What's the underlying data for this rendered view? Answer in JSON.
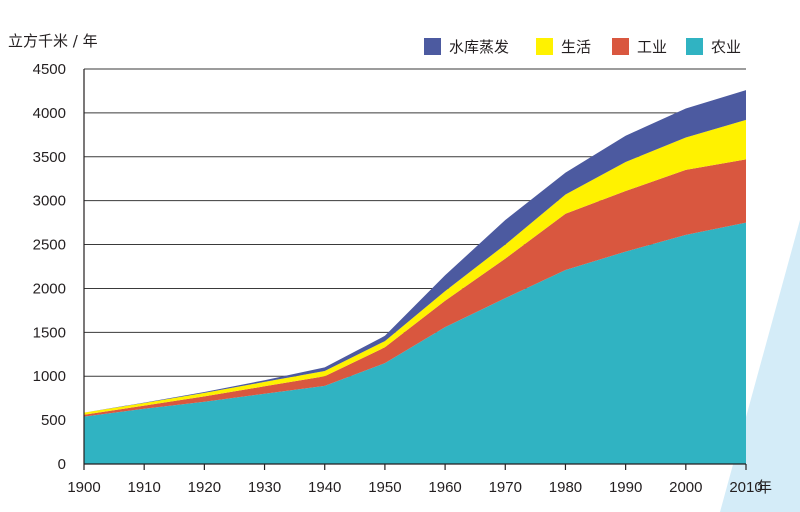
{
  "chart_data": {
    "type": "area",
    "stacked": true,
    "title": "",
    "ylabel": "立方千米 / 年",
    "xlabel": "",
    "x_unit": "年",
    "x": [
      1900,
      1910,
      1920,
      1930,
      1940,
      1950,
      1960,
      1970,
      1980,
      1990,
      2000,
      2010
    ],
    "x_tick_labels": [
      "1900",
      "1910",
      "1920",
      "1930",
      "1940",
      "1950",
      "1960",
      "1970",
      "1980",
      "1990",
      "2000",
      "2010"
    ],
    "ylim": [
      0,
      4500
    ],
    "y_ticks": [
      0,
      500,
      1000,
      1500,
      2000,
      2500,
      3000,
      3500,
      4000,
      4500
    ],
    "y_tick_labels": [
      "0",
      "500",
      "1000",
      "1500",
      "2000",
      "2500",
      "3000",
      "3500",
      "4000",
      "4500"
    ],
    "grid": "horizontal",
    "legend_position": "top-right",
    "series": [
      {
        "name": "农业",
        "color": "#30b3c2",
        "values": [
          540,
          630,
          710,
          800,
          890,
          1150,
          1560,
          1890,
          2210,
          2420,
          2610,
          2750
        ]
      },
      {
        "name": "工业",
        "color": "#d9573f",
        "values": [
          20,
          35,
          60,
          85,
          110,
          180,
          300,
          450,
          640,
          690,
          740,
          720
        ]
      },
      {
        "name": "生活",
        "color": "#fff200",
        "values": [
          25,
          30,
          40,
          50,
          60,
          70,
          110,
          160,
          220,
          330,
          370,
          450
        ]
      },
      {
        "name": "水库蒸发",
        "color": "#4c5aa0",
        "values": [
          0,
          5,
          10,
          20,
          40,
          60,
          180,
          280,
          250,
          300,
          330,
          340
        ]
      }
    ],
    "legend_order": [
      "水库蒸发",
      "生活",
      "工业",
      "农业"
    ]
  }
}
